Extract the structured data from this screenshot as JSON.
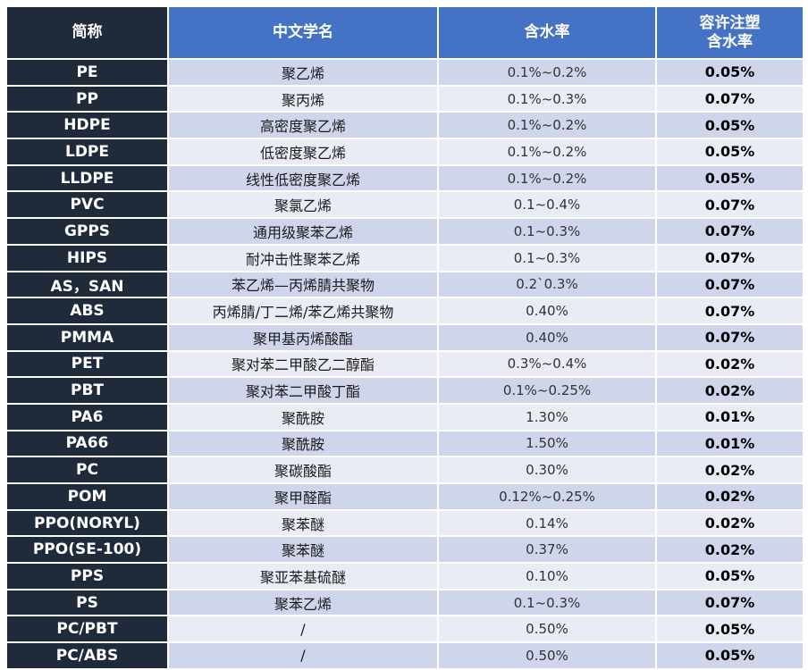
{
  "header": {
    "abbr": "简称",
    "name": "中文学名",
    "moisture": "含水率",
    "limit_line1": "容许注塑",
    "limit_line2": "含水率"
  },
  "rows": [
    {
      "abbr": "PE",
      "name": "聚乙烯",
      "moisture": "0.1%~0.2%",
      "limit": "0.05%"
    },
    {
      "abbr": "PP",
      "name": "聚丙烯",
      "moisture": "0.1%~0.3%",
      "limit": "0.07%"
    },
    {
      "abbr": "HDPE",
      "name": "高密度聚乙烯",
      "moisture": "0.1%~0.2%",
      "limit": "0.05%"
    },
    {
      "abbr": "LDPE",
      "name": "低密度聚乙烯",
      "moisture": "0.1%~0.2%",
      "limit": "0.05%"
    },
    {
      "abbr": "LLDPE",
      "name": "线性低密度聚乙烯",
      "moisture": "0.1%~0.2%",
      "limit": "0.05%"
    },
    {
      "abbr": "PVC",
      "name": "聚氯乙烯",
      "moisture": "0.1~0.4%",
      "limit": "0.07%"
    },
    {
      "abbr": "GPPS",
      "name": "通用级聚苯乙烯",
      "moisture": "0.1~0.3%",
      "limit": "0.07%"
    },
    {
      "abbr": "HIPS",
      "name": "耐冲击性聚苯乙烯",
      "moisture": "0.1~0.3%",
      "limit": "0.07%"
    },
    {
      "abbr": "AS，SAN",
      "name": "苯乙烯—丙烯腈共聚物",
      "moisture": "0.2`0.3%",
      "limit": "0.07%"
    },
    {
      "abbr": "ABS",
      "name": "丙烯腈/丁二烯/苯乙烯共聚物",
      "moisture": "0.40%",
      "limit": "0.07%"
    },
    {
      "abbr": "PMMA",
      "name": "聚甲基丙烯酸酯",
      "moisture": "0.40%",
      "limit": "0.07%"
    },
    {
      "abbr": "PET",
      "name": "聚对苯二甲酸乙二醇酯",
      "moisture": "0.3%~0.4%",
      "limit": "0.02%"
    },
    {
      "abbr": "PBT",
      "name": "聚对苯二甲酸丁酯",
      "moisture": "0.1%~0.25%",
      "limit": "0.02%"
    },
    {
      "abbr": "PA6",
      "name": "聚酰胺",
      "moisture": "1.30%",
      "limit": "0.01%"
    },
    {
      "abbr": "PA66",
      "name": "聚酰胺",
      "moisture": "1.50%",
      "limit": "0.01%"
    },
    {
      "abbr": "PC",
      "name": "聚碳酸酯",
      "moisture": "0.30%",
      "limit": "0.02%"
    },
    {
      "abbr": "POM",
      "name": "聚甲醛酯",
      "moisture": "0.12%~0.25%",
      "limit": "0.02%"
    },
    {
      "abbr": "PPO(NORYL)",
      "name": "聚苯醚",
      "moisture": "0.14%",
      "limit": "0.02%"
    },
    {
      "abbr": "PPO(SE-100)",
      "name": "聚苯醚",
      "moisture": "0.37%",
      "limit": "0.02%"
    },
    {
      "abbr": "PPS",
      "name": "聚亚苯基硫醚",
      "moisture": "0.10%",
      "limit": "0.05%"
    },
    {
      "abbr": "PS",
      "name": "聚苯乙烯",
      "moisture": "0.1~0.3%",
      "limit": "0.07%"
    },
    {
      "abbr": "PC/PBT",
      "name": "/",
      "moisture": "0.50%",
      "limit": "0.05%"
    },
    {
      "abbr": "PC/ABS",
      "name": "/",
      "moisture": "0.50%",
      "limit": "0.05%"
    }
  ],
  "colors": {
    "header_dark": "#1f2a3a",
    "header_blue": "#4472c4",
    "row_odd": "#cfd5ea",
    "row_even": "#e9ebf5"
  }
}
